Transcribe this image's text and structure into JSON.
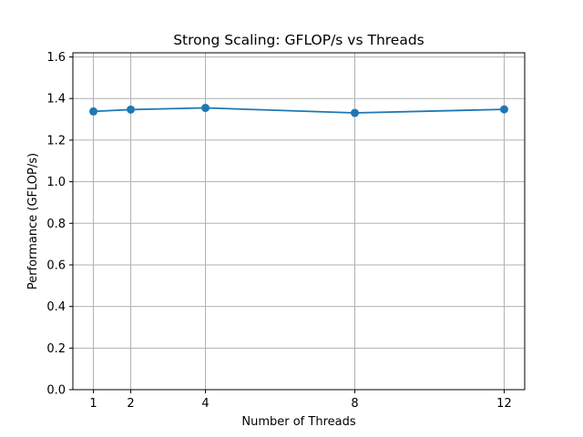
{
  "chart_data": {
    "type": "line",
    "title": "Strong Scaling: GFLOP/s vs Threads",
    "xlabel": "Number of Threads",
    "ylabel": "Performance (GFLOP/s)",
    "x": [
      1,
      2,
      4,
      8,
      12
    ],
    "series": [
      {
        "values": [
          1.338,
          1.347,
          1.355,
          1.331,
          1.348
        ]
      }
    ],
    "xticks": [
      "1",
      "2",
      "4",
      "8",
      "12"
    ],
    "xlim": [
      0.45,
      12.55
    ],
    "yticks": [
      "0.0",
      "0.2",
      "0.4",
      "0.6",
      "0.8",
      "1.0",
      "1.2",
      "1.4",
      "1.6"
    ],
    "ylim": [
      0,
      1.62
    ],
    "grid": true,
    "legend": "none",
    "colors": {
      "line": "#1f77b4",
      "grid": "#b0b0b0",
      "axes": "#000000"
    }
  }
}
